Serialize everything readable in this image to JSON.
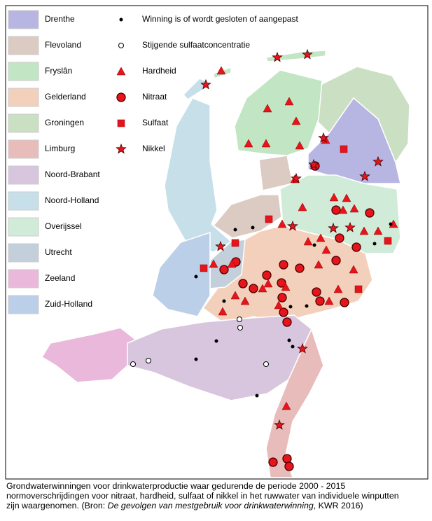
{
  "legend": {
    "provinces": [
      {
        "name": "Drenthe",
        "color": "#b7b5e2"
      },
      {
        "name": "Flevoland",
        "color": "#dccbc3"
      },
      {
        "name": "Fryslân",
        "color": "#c2e5c3"
      },
      {
        "name": "Gelderland",
        "color": "#f3d0bb"
      },
      {
        "name": "Groningen",
        "color": "#cbdfc3"
      },
      {
        "name": "Limburg",
        "color": "#e9bcbc"
      },
      {
        "name": "Noord-Brabant",
        "color": "#d8c5de"
      },
      {
        "name": "Noord-Holland",
        "color": "#c6dfe8"
      },
      {
        "name": "Overijssel",
        "color": "#d1ebd9"
      },
      {
        "name": "Utrecht",
        "color": "#c3cfda"
      },
      {
        "name": "Zeeland",
        "color": "#e9b8db"
      },
      {
        "name": "Zuid-Holland",
        "color": "#bccfe9"
      }
    ],
    "symbols": [
      {
        "label": "Winning is of wordt gesloten of aangepast"
      },
      {
        "label": "Stijgende sulfaatconcentratie"
      },
      {
        "label": "Hardheid"
      },
      {
        "label": "Nitraat"
      },
      {
        "label": "Sulfaat"
      },
      {
        "label": "Nikkel"
      }
    ]
  },
  "caption": {
    "line1": "Grondwaterwinningen voor drinkwaterproductie waar gedurende de periode 2000 - 2015",
    "line2": "normoverschrijdingen voor nitraat, hardheid, sulfaat of nikkel in het ruwwater van individuele winputten",
    "line3_start": "zijn waargenomen. (Bron: ",
    "source": "De gevolgen van mestgebruik voor drinkwaterwinning",
    "line3_end": ", KWR 2016)"
  }
}
